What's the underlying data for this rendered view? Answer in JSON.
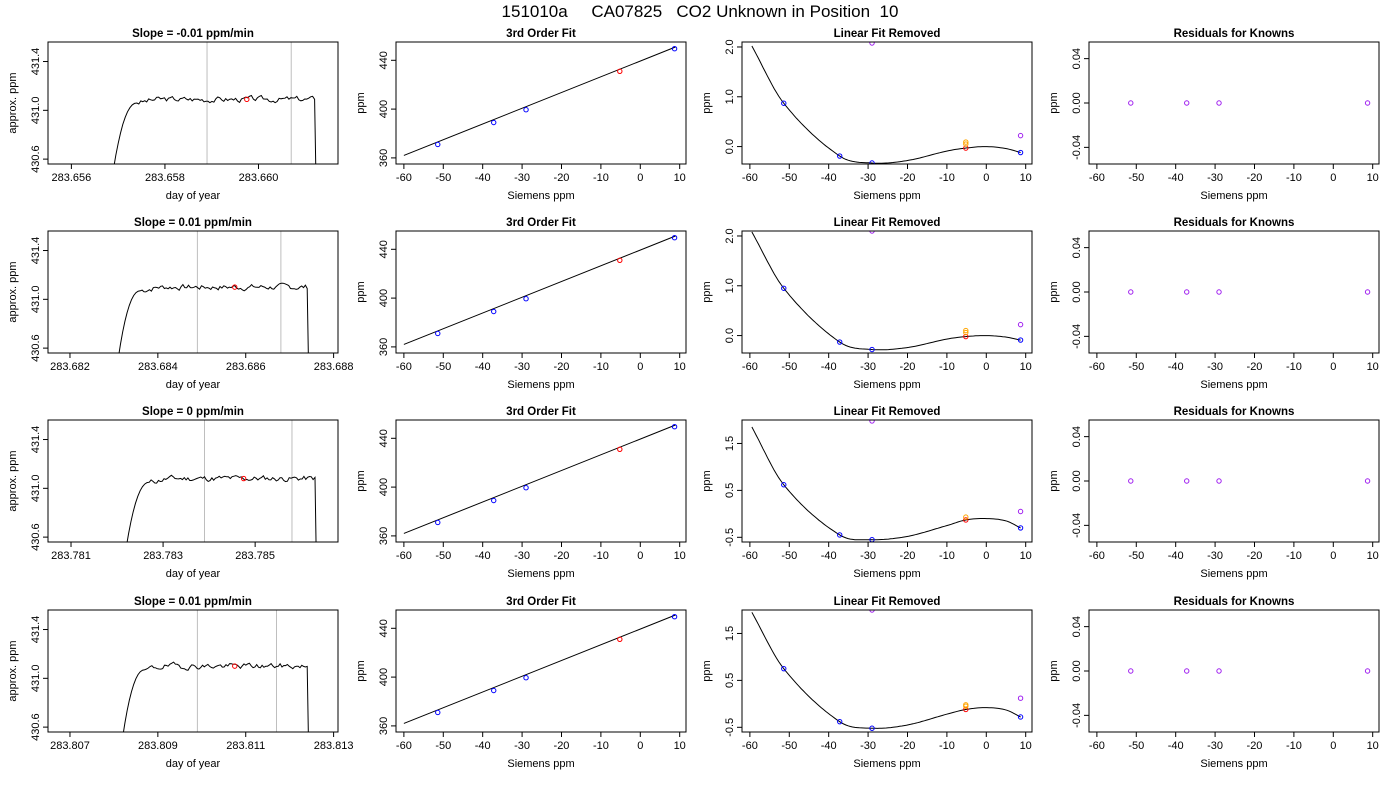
{
  "figure_title": "151010a     CA07825   CO2 Unknown in Position  10",
  "colors": {
    "known_point": "#0000ff",
    "unknown_point": "#ff0000",
    "reference_point": "#ffa500",
    "residual_point": "#a020f0",
    "marker_line": "#bebebe",
    "axis": "#000000"
  },
  "chart_data": [
    {
      "type": "line",
      "title": "Slope =  -0.01  ppm/min",
      "xlabel": "day of year",
      "ylabel": "approx. ppm",
      "xlim": [
        283.6555,
        283.6617
      ],
      "ylim": [
        430.56,
        431.56
      ],
      "xticks": [
        283.656,
        283.658,
        283.66
      ],
      "xticklabels": [
        "283.656",
        "283.658",
        "283.660"
      ],
      "yticks": [
        430.6,
        431.0,
        431.4
      ],
      "yticklabels": [
        "430.6",
        "431.0",
        "431.4"
      ],
      "markers_x": [
        283.6589,
        283.6607
      ],
      "trace": {
        "x_start": 283.6569,
        "x_plateau": 283.6574,
        "x_end": 283.6612,
        "level": 431.09,
        "bottom": 430.52,
        "seed": 3
      },
      "highlight": {
        "x": 283.65975,
        "y": 431.09
      },
      "grid": false
    },
    {
      "type": "scatter",
      "title": "3rd Order Fit",
      "xlabel": "Siemens ppm",
      "ylabel": "ppm",
      "xlim": [
        -62,
        11.6
      ],
      "ylim": [
        355,
        455
      ],
      "xticks": [
        -60,
        -50,
        -40,
        -30,
        -20,
        -10,
        0,
        10
      ],
      "yticks": [
        360,
        400,
        440
      ],
      "line": {
        "x": [
          -60,
          9
        ],
        "y": [
          362,
          451
        ]
      },
      "points": [
        {
          "x": -51.4,
          "y": 371,
          "role": "known"
        },
        {
          "x": -37.2,
          "y": 389,
          "role": "known"
        },
        {
          "x": -29,
          "y": 399.5,
          "role": "known"
        },
        {
          "x": -5.2,
          "y": 431,
          "role": "unknown"
        },
        {
          "x": 8.7,
          "y": 449.5,
          "role": "known"
        }
      ],
      "grid": false
    },
    {
      "type": "scatter",
      "title": "Linear Fit Removed",
      "xlabel": "Siemens ppm",
      "ylabel": "ppm",
      "xlim": [
        -62,
        11.6
      ],
      "ylim": [
        -0.35,
        2.1
      ],
      "xticks": [
        -60,
        -50,
        -40,
        -30,
        -20,
        -10,
        0,
        10
      ],
      "yticks": [
        0.0,
        1.0,
        2.0
      ],
      "yticklabels": [
        "0.0",
        "1.0",
        "2.0"
      ],
      "curve": {
        "x": [
          -59.5,
          -51.4,
          -37.2,
          -29,
          -20,
          -10,
          -5.2,
          0,
          5,
          8.7
        ],
        "y": [
          2.02,
          0.87,
          -0.19,
          -0.33,
          -0.28,
          -0.09,
          -0.03,
          0.0,
          -0.04,
          -0.12
        ]
      },
      "points": [
        {
          "x": -51.4,
          "y": 0.87,
          "role": "known"
        },
        {
          "x": -37.2,
          "y": -0.19,
          "role": "known"
        },
        {
          "x": -29,
          "y": -0.33,
          "role": "known"
        },
        {
          "x": 8.7,
          "y": -0.12,
          "role": "known"
        },
        {
          "x": -5.2,
          "y": -0.03,
          "role": "unknown"
        },
        {
          "x": -5.2,
          "y": 0.05,
          "role": "reference"
        },
        {
          "x": -5.2,
          "y": 0.09,
          "role": "reference"
        },
        {
          "x": -29,
          "y": 2.08,
          "role": "residual"
        },
        {
          "x": 8.7,
          "y": 0.22,
          "role": "residual"
        }
      ],
      "grid": false
    },
    {
      "type": "scatter",
      "title": "Residuals for Knowns",
      "xlabel": "Siemens ppm",
      "ylabel": "ppm",
      "xlim": [
        -62,
        11.6
      ],
      "ylim": [
        -0.055,
        0.055
      ],
      "xticks": [
        -60,
        -50,
        -40,
        -30,
        -20,
        -10,
        0,
        10
      ],
      "yticks": [
        -0.04,
        0.0,
        0.04
      ],
      "yticklabels": [
        "-0.04",
        "0.00",
        "0.04"
      ],
      "points": [
        {
          "x": -51.4,
          "y": 0,
          "role": "residual"
        },
        {
          "x": -37.2,
          "y": 0,
          "role": "residual"
        },
        {
          "x": -29,
          "y": 0,
          "role": "residual"
        },
        {
          "x": 8.7,
          "y": 0,
          "role": "residual"
        }
      ],
      "grid": false
    },
    {
      "type": "line",
      "title": "Slope =  0.01  ppm/min",
      "xlabel": "day of year",
      "ylabel": "approx. ppm",
      "xlim": [
        283.6815,
        283.6881
      ],
      "ylim": [
        430.56,
        431.56
      ],
      "xticks": [
        283.682,
        283.684,
        283.686,
        283.688
      ],
      "xticklabels": [
        "283.682",
        "283.684",
        "283.686",
        "283.688"
      ],
      "yticks": [
        430.6,
        431.0,
        431.4
      ],
      "yticklabels": [
        "430.6",
        "431.0",
        "431.4"
      ],
      "markers_x": [
        283.6849,
        283.6868
      ],
      "trace": {
        "x_start": 283.6831,
        "x_plateau": 283.6836,
        "x_end": 283.6874,
        "level": 431.1,
        "bottom": 430.52,
        "seed": 7
      },
      "highlight": {
        "x": 283.68575,
        "y": 431.1
      },
      "grid": false
    },
    {
      "type": "scatter",
      "title": "3rd Order Fit",
      "xlabel": "Siemens ppm",
      "ylabel": "ppm",
      "xlim": [
        -62,
        11.6
      ],
      "ylim": [
        355,
        455
      ],
      "xticks": [
        -60,
        -50,
        -40,
        -30,
        -20,
        -10,
        0,
        10
      ],
      "yticks": [
        360,
        400,
        440
      ],
      "line": {
        "x": [
          -60,
          9
        ],
        "y": [
          362,
          451
        ]
      },
      "points": [
        {
          "x": -51.4,
          "y": 371,
          "role": "known"
        },
        {
          "x": -37.2,
          "y": 389,
          "role": "known"
        },
        {
          "x": -29,
          "y": 399.5,
          "role": "known"
        },
        {
          "x": -5.2,
          "y": 431,
          "role": "unknown"
        },
        {
          "x": 8.7,
          "y": 449.5,
          "role": "known"
        }
      ],
      "grid": false
    },
    {
      "type": "scatter",
      "title": "Linear Fit Removed",
      "xlabel": "Siemens ppm",
      "ylabel": "ppm",
      "xlim": [
        -62,
        11.6
      ],
      "ylim": [
        -0.35,
        2.1
      ],
      "xticks": [
        -60,
        -50,
        -40,
        -30,
        -20,
        -10,
        0,
        10
      ],
      "yticks": [
        0.0,
        1.0,
        2.0
      ],
      "yticklabels": [
        "0.0",
        "1.0",
        "2.0"
      ],
      "curve": {
        "x": [
          -59.5,
          -51.4,
          -37.2,
          -29,
          -20,
          -10,
          -5.2,
          0,
          5,
          8.7
        ],
        "y": [
          2.08,
          0.95,
          -0.13,
          -0.28,
          -0.24,
          -0.07,
          -0.02,
          0.0,
          -0.03,
          -0.09
        ]
      },
      "points": [
        {
          "x": -51.4,
          "y": 0.95,
          "role": "known"
        },
        {
          "x": -37.2,
          "y": -0.13,
          "role": "known"
        },
        {
          "x": -29,
          "y": -0.28,
          "role": "known"
        },
        {
          "x": 8.7,
          "y": -0.09,
          "role": "known"
        },
        {
          "x": -5.2,
          "y": -0.02,
          "role": "unknown"
        },
        {
          "x": -5.2,
          "y": 0.06,
          "role": "reference"
        },
        {
          "x": -5.2,
          "y": 0.1,
          "role": "reference"
        },
        {
          "x": -29,
          "y": 2.1,
          "role": "residual"
        },
        {
          "x": 8.7,
          "y": 0.22,
          "role": "residual"
        }
      ],
      "grid": false
    },
    {
      "type": "scatter",
      "title": "Residuals for Knowns",
      "xlabel": "Siemens ppm",
      "ylabel": "ppm",
      "xlim": [
        -62,
        11.6
      ],
      "ylim": [
        -0.055,
        0.055
      ],
      "xticks": [
        -60,
        -50,
        -40,
        -30,
        -20,
        -10,
        0,
        10
      ],
      "yticks": [
        -0.04,
        0.0,
        0.04
      ],
      "yticklabels": [
        "-0.04",
        "0.00",
        "0.04"
      ],
      "points": [
        {
          "x": -51.4,
          "y": 0,
          "role": "residual"
        },
        {
          "x": -37.2,
          "y": 0,
          "role": "residual"
        },
        {
          "x": -29,
          "y": 0,
          "role": "residual"
        },
        {
          "x": 8.7,
          "y": 0,
          "role": "residual"
        }
      ],
      "grid": false
    },
    {
      "type": "line",
      "title": "Slope =  0  ppm/min",
      "xlabel": "day of year",
      "ylabel": "approx. ppm",
      "xlim": [
        283.7805,
        283.7868
      ],
      "ylim": [
        430.56,
        431.56
      ],
      "xticks": [
        283.781,
        283.783,
        283.785
      ],
      "xticklabels": [
        "283.781",
        "283.783",
        "283.785"
      ],
      "yticks": [
        430.6,
        431.0,
        431.4
      ],
      "yticklabels": [
        "430.6",
        "431.0",
        "431.4"
      ],
      "markers_x": [
        283.7839,
        283.7858
      ],
      "trace": {
        "x_start": 283.7822,
        "x_plateau": 283.7827,
        "x_end": 283.7863,
        "level": 431.08,
        "bottom": 430.52,
        "seed": 11
      },
      "highlight": {
        "x": 283.78475,
        "y": 431.08
      },
      "grid": false
    },
    {
      "type": "scatter",
      "title": "3rd Order Fit",
      "xlabel": "Siemens ppm",
      "ylabel": "ppm",
      "xlim": [
        -62,
        11.6
      ],
      "ylim": [
        355,
        455
      ],
      "xticks": [
        -60,
        -50,
        -40,
        -30,
        -20,
        -10,
        0,
        10
      ],
      "yticks": [
        360,
        400,
        440
      ],
      "line": {
        "x": [
          -60,
          9
        ],
        "y": [
          362,
          451
        ]
      },
      "points": [
        {
          "x": -51.4,
          "y": 371,
          "role": "known"
        },
        {
          "x": -37.2,
          "y": 389,
          "role": "known"
        },
        {
          "x": -29,
          "y": 399.5,
          "role": "known"
        },
        {
          "x": -5.2,
          "y": 431,
          "role": "unknown"
        },
        {
          "x": 8.7,
          "y": 449.5,
          "role": "known"
        }
      ],
      "grid": false
    },
    {
      "type": "scatter",
      "title": "Linear Fit Removed",
      "xlabel": "Siemens ppm",
      "ylabel": "ppm",
      "xlim": [
        -62,
        11.6
      ],
      "ylim": [
        -0.6,
        2.0
      ],
      "xticks": [
        -60,
        -50,
        -40,
        -30,
        -20,
        -10,
        0,
        10
      ],
      "yticks": [
        -0.5,
        0.5,
        1.5
      ],
      "yticklabels": [
        "-0.5",
        "0.5",
        "1.5"
      ],
      "curve": {
        "x": [
          -59.5,
          -51.4,
          -37.2,
          -29,
          -20,
          -10,
          -5.2,
          0,
          5,
          8.7
        ],
        "y": [
          1.85,
          0.62,
          -0.45,
          -0.55,
          -0.48,
          -0.25,
          -0.13,
          -0.1,
          -0.15,
          -0.3
        ]
      },
      "points": [
        {
          "x": -51.4,
          "y": 0.62,
          "role": "known"
        },
        {
          "x": -37.2,
          "y": -0.45,
          "role": "known"
        },
        {
          "x": -29,
          "y": -0.55,
          "role": "known"
        },
        {
          "x": 8.7,
          "y": -0.3,
          "role": "known"
        },
        {
          "x": -5.2,
          "y": -0.13,
          "role": "unknown"
        },
        {
          "x": -5.2,
          "y": -0.07,
          "role": "reference"
        },
        {
          "x": -29,
          "y": 1.98,
          "role": "residual"
        },
        {
          "x": 8.7,
          "y": 0.05,
          "role": "residual"
        }
      ],
      "grid": false
    },
    {
      "type": "scatter",
      "title": "Residuals for Knowns",
      "xlabel": "Siemens ppm",
      "ylabel": "ppm",
      "xlim": [
        -62,
        11.6
      ],
      "ylim": [
        -0.055,
        0.055
      ],
      "xticks": [
        -60,
        -50,
        -40,
        -30,
        -20,
        -10,
        0,
        10
      ],
      "yticks": [
        -0.04,
        0.0,
        0.04
      ],
      "yticklabels": [
        "-0.04",
        "0.00",
        "0.04"
      ],
      "points": [
        {
          "x": -51.4,
          "y": 0,
          "role": "residual"
        },
        {
          "x": -37.2,
          "y": 0,
          "role": "residual"
        },
        {
          "x": -29,
          "y": 0,
          "role": "residual"
        },
        {
          "x": 8.7,
          "y": 0,
          "role": "residual"
        }
      ],
      "grid": false
    },
    {
      "type": "line",
      "title": "Slope =  0.01  ppm/min",
      "xlabel": "day of year",
      "ylabel": "approx. ppm",
      "xlim": [
        283.8065,
        283.8131
      ],
      "ylim": [
        430.56,
        431.56
      ],
      "xticks": [
        283.807,
        283.809,
        283.811,
        283.813
      ],
      "xticklabels": [
        "283.807",
        "283.809",
        "283.811",
        "283.813"
      ],
      "yticks": [
        430.6,
        431.0,
        431.4
      ],
      "yticklabels": [
        "430.6",
        "431.0",
        "431.4"
      ],
      "markers_x": [
        283.8099,
        283.8117
      ],
      "trace": {
        "x_start": 283.8082,
        "x_plateau": 283.8087,
        "x_end": 283.8124,
        "level": 431.1,
        "bottom": 430.52,
        "seed": 19
      },
      "highlight": {
        "x": 283.81075,
        "y": 431.1
      },
      "grid": false
    },
    {
      "type": "scatter",
      "title": "3rd Order Fit",
      "xlabel": "Siemens ppm",
      "ylabel": "ppm",
      "xlim": [
        -62,
        11.6
      ],
      "ylim": [
        355,
        455
      ],
      "xticks": [
        -60,
        -50,
        -40,
        -30,
        -20,
        -10,
        0,
        10
      ],
      "yticks": [
        360,
        400,
        440
      ],
      "line": {
        "x": [
          -60,
          9
        ],
        "y": [
          362,
          451
        ]
      },
      "points": [
        {
          "x": -51.4,
          "y": 371,
          "role": "known"
        },
        {
          "x": -37.2,
          "y": 389,
          "role": "known"
        },
        {
          "x": -29,
          "y": 399.5,
          "role": "known"
        },
        {
          "x": -5.2,
          "y": 431,
          "role": "unknown"
        },
        {
          "x": 8.7,
          "y": 449.5,
          "role": "known"
        }
      ],
      "grid": false
    },
    {
      "type": "scatter",
      "title": "Linear Fit Removed",
      "xlabel": "Siemens ppm",
      "ylabel": "ppm",
      "xlim": [
        -62,
        11.6
      ],
      "ylim": [
        -0.6,
        2.0
      ],
      "xticks": [
        -60,
        -50,
        -40,
        -30,
        -20,
        -10,
        0,
        10
      ],
      "yticks": [
        -0.5,
        0.5,
        1.5
      ],
      "yticklabels": [
        "-0.5",
        "0.5",
        "1.5"
      ],
      "curve": {
        "x": [
          -59.5,
          -51.4,
          -37.2,
          -29,
          -20,
          -10,
          -5.2,
          0,
          5,
          8.7
        ],
        "y": [
          1.95,
          0.75,
          -0.38,
          -0.52,
          -0.45,
          -0.22,
          -0.12,
          -0.08,
          -0.13,
          -0.28
        ]
      },
      "points": [
        {
          "x": -51.4,
          "y": 0.75,
          "role": "known"
        },
        {
          "x": -37.2,
          "y": -0.38,
          "role": "known"
        },
        {
          "x": -29,
          "y": -0.52,
          "role": "known"
        },
        {
          "x": 8.7,
          "y": -0.28,
          "role": "known"
        },
        {
          "x": -5.2,
          "y": -0.12,
          "role": "unknown"
        },
        {
          "x": -5.2,
          "y": -0.05,
          "role": "reference"
        },
        {
          "x": -5.2,
          "y": -0.02,
          "role": "reference"
        },
        {
          "x": -29,
          "y": 2.0,
          "role": "residual"
        },
        {
          "x": 8.7,
          "y": 0.12,
          "role": "residual"
        }
      ],
      "grid": false
    },
    {
      "type": "scatter",
      "title": "Residuals for Knowns",
      "xlabel": "Siemens ppm",
      "ylabel": "ppm",
      "xlim": [
        -62,
        11.6
      ],
      "ylim": [
        -0.055,
        0.055
      ],
      "xticks": [
        -60,
        -50,
        -40,
        -30,
        -20,
        -10,
        0,
        10
      ],
      "yticks": [
        -0.04,
        0.0,
        0.04
      ],
      "yticklabels": [
        "-0.04",
        "0.00",
        "0.04"
      ],
      "points": [
        {
          "x": -51.4,
          "y": 0,
          "role": "residual"
        },
        {
          "x": -37.2,
          "y": 0,
          "role": "residual"
        },
        {
          "x": -29,
          "y": 0,
          "role": "residual"
        },
        {
          "x": 8.7,
          "y": 0,
          "role": "residual"
        }
      ],
      "grid": false
    }
  ]
}
